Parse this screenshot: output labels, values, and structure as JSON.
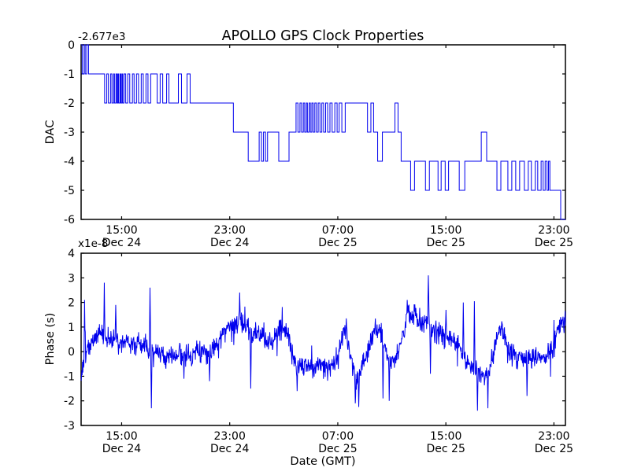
{
  "figure": {
    "title": "APOLLO GPS Clock Properties",
    "xlabel": "Date (GMT)",
    "background": "#ffffff",
    "line_color": "#0000ee",
    "axis_color": "#000000"
  },
  "x_axis": {
    "range_hours": [
      12.0,
      47.85
    ],
    "unit": "hours since Dec 24 00:00 GMT",
    "ticks": [
      {
        "hour": 15,
        "time": "15:00",
        "date": "Dec 24"
      },
      {
        "hour": 23,
        "time": "23:00",
        "date": "Dec 24"
      },
      {
        "hour": 31,
        "time": "07:00",
        "date": "Dec 25"
      },
      {
        "hour": 39,
        "time": "15:00",
        "date": "Dec 25"
      },
      {
        "hour": 47,
        "time": "23:00",
        "date": "Dec 25"
      }
    ]
  },
  "chart_data": [
    {
      "type": "line",
      "subplot": "top",
      "ylabel": "DAC",
      "offset_text": "-2.677e3",
      "ylim": [
        -6,
        0
      ],
      "yticks": [
        0,
        -1,
        -2,
        -3,
        -4,
        -5,
        -6
      ],
      "step_mode": "post",
      "points": [
        [
          12.0,
          0
        ],
        [
          12.08,
          -1
        ],
        [
          12.22,
          0
        ],
        [
          12.3,
          -1
        ],
        [
          12.42,
          0
        ],
        [
          12.55,
          -1
        ],
        [
          13.74,
          -2
        ],
        [
          13.9,
          -1
        ],
        [
          14.02,
          -2
        ],
        [
          14.18,
          -1
        ],
        [
          14.28,
          -2
        ],
        [
          14.4,
          -1
        ],
        [
          14.47,
          -2
        ],
        [
          14.58,
          -1
        ],
        [
          14.65,
          -2
        ],
        [
          14.72,
          -1
        ],
        [
          14.78,
          -2
        ],
        [
          14.88,
          -1
        ],
        [
          14.94,
          -2
        ],
        [
          15.02,
          -1
        ],
        [
          15.08,
          -2
        ],
        [
          15.18,
          -1
        ],
        [
          15.3,
          -2
        ],
        [
          15.45,
          -1
        ],
        [
          15.6,
          -2
        ],
        [
          15.8,
          -1
        ],
        [
          15.92,
          -2
        ],
        [
          16.1,
          -1
        ],
        [
          16.25,
          -2
        ],
        [
          16.45,
          -1
        ],
        [
          16.6,
          -2
        ],
        [
          16.8,
          -1
        ],
        [
          16.95,
          -2
        ],
        [
          17.15,
          -1
        ],
        [
          17.63,
          -2
        ],
        [
          17.85,
          -1
        ],
        [
          18.04,
          -2
        ],
        [
          18.33,
          -1
        ],
        [
          18.5,
          -2
        ],
        [
          19.2,
          -1
        ],
        [
          19.43,
          -2
        ],
        [
          19.84,
          -1
        ],
        [
          20.07,
          -2
        ],
        [
          23.27,
          -3
        ],
        [
          24.37,
          -4
        ],
        [
          25.18,
          -3
        ],
        [
          25.35,
          -4
        ],
        [
          25.5,
          -3
        ],
        [
          25.65,
          -4
        ],
        [
          25.8,
          -3
        ],
        [
          26.63,
          -4
        ],
        [
          27.39,
          -3
        ],
        [
          27.91,
          -2
        ],
        [
          28.05,
          -3
        ],
        [
          28.2,
          -2
        ],
        [
          28.32,
          -3
        ],
        [
          28.45,
          -2
        ],
        [
          28.55,
          -3
        ],
        [
          28.67,
          -2
        ],
        [
          28.75,
          -3
        ],
        [
          28.88,
          -2
        ],
        [
          28.97,
          -3
        ],
        [
          29.08,
          -2
        ],
        [
          29.18,
          -3
        ],
        [
          29.3,
          -2
        ],
        [
          29.42,
          -3
        ],
        [
          29.55,
          -2
        ],
        [
          29.68,
          -3
        ],
        [
          29.82,
          -2
        ],
        [
          29.95,
          -3
        ],
        [
          30.1,
          -2
        ],
        [
          30.25,
          -3
        ],
        [
          30.42,
          -2
        ],
        [
          30.58,
          -3
        ],
        [
          30.78,
          -2
        ],
        [
          30.95,
          -3
        ],
        [
          31.1,
          -2
        ],
        [
          31.3,
          -3
        ],
        [
          31.55,
          -2
        ],
        [
          33.2,
          -3
        ],
        [
          33.45,
          -2
        ],
        [
          33.65,
          -3
        ],
        [
          33.95,
          -4
        ],
        [
          34.3,
          -3
        ],
        [
          35.23,
          -2
        ],
        [
          35.46,
          -3
        ],
        [
          35.69,
          -4
        ],
        [
          36.39,
          -5
        ],
        [
          36.68,
          -4
        ],
        [
          37.49,
          -5
        ],
        [
          37.78,
          -4
        ],
        [
          38.42,
          -5
        ],
        [
          38.65,
          -4
        ],
        [
          38.95,
          -5
        ],
        [
          39.2,
          -4
        ],
        [
          39.99,
          -5
        ],
        [
          40.4,
          -4
        ],
        [
          41.62,
          -3
        ],
        [
          42.02,
          -4
        ],
        [
          42.78,
          -5
        ],
        [
          43.07,
          -4
        ],
        [
          43.59,
          -5
        ],
        [
          43.88,
          -4
        ],
        [
          44.17,
          -5
        ],
        [
          44.46,
          -4
        ],
        [
          44.81,
          -5
        ],
        [
          45.1,
          -4
        ],
        [
          45.33,
          -5
        ],
        [
          45.62,
          -4
        ],
        [
          45.8,
          -5
        ],
        [
          46.05,
          -4
        ],
        [
          46.2,
          -5
        ],
        [
          46.35,
          -4
        ],
        [
          46.49,
          -5
        ],
        [
          46.6,
          -4
        ],
        [
          46.7,
          -5
        ],
        [
          47.5,
          -6
        ],
        [
          47.85,
          -6
        ]
      ]
    },
    {
      "type": "line",
      "subplot": "bottom",
      "ylabel": "Phase (s)",
      "offset_text": "x1e-8",
      "ylim": [
        -3,
        4
      ],
      "yticks": [
        4,
        3,
        2,
        1,
        0,
        -1,
        -2,
        -3
      ],
      "noise": {
        "seed": 1337,
        "amplitude": 0.42,
        "heavy_prob": 0.05,
        "heavy_mult": 2.2,
        "samples": 1400
      },
      "mean_anchors": [
        [
          12.0,
          -1.05
        ],
        [
          12.15,
          -0.5
        ],
        [
          12.4,
          0.1
        ],
        [
          12.7,
          0.3
        ],
        [
          13.0,
          0.55
        ],
        [
          13.4,
          0.75
        ],
        [
          13.8,
          0.55
        ],
        [
          14.2,
          0.6
        ],
        [
          14.6,
          0.45
        ],
        [
          15.0,
          0.3
        ],
        [
          15.4,
          0.45
        ],
        [
          15.8,
          0.35
        ],
        [
          16.2,
          0.3
        ],
        [
          16.6,
          0.25
        ],
        [
          17.0,
          0.15
        ],
        [
          17.4,
          -0.1
        ],
        [
          17.8,
          -0.05
        ],
        [
          18.2,
          -0.1
        ],
        [
          18.6,
          -0.15
        ],
        [
          19.0,
          -0.1
        ],
        [
          19.4,
          -0.05
        ],
        [
          19.8,
          -0.2
        ],
        [
          20.2,
          -0.1
        ],
        [
          20.6,
          0.1
        ],
        [
          21.0,
          0.15
        ],
        [
          21.4,
          0.05
        ],
        [
          21.8,
          0.2
        ],
        [
          22.2,
          0.4
        ],
        [
          22.6,
          0.8
        ],
        [
          23.0,
          1.0
        ],
        [
          23.4,
          1.2
        ],
        [
          23.8,
          1.25
        ],
        [
          24.2,
          1.0
        ],
        [
          24.6,
          0.7
        ],
        [
          25.0,
          0.85
        ],
        [
          25.4,
          0.6
        ],
        [
          25.8,
          0.3
        ],
        [
          26.2,
          0.4
        ],
        [
          26.6,
          0.9
        ],
        [
          27.0,
          1.0
        ],
        [
          27.4,
          0.6
        ],
        [
          27.8,
          -0.3
        ],
        [
          28.2,
          -0.6
        ],
        [
          28.6,
          -0.5
        ],
        [
          29.0,
          -0.55
        ],
        [
          29.4,
          -0.6
        ],
        [
          29.8,
          -0.5
        ],
        [
          30.2,
          -0.65
        ],
        [
          30.6,
          -0.5
        ],
        [
          31.0,
          -0.3
        ],
        [
          31.4,
          0.9
        ],
        [
          31.7,
          0.4
        ],
        [
          32.0,
          -0.3
        ],
        [
          32.4,
          -1.2
        ],
        [
          32.7,
          -0.7
        ],
        [
          33.0,
          -0.2
        ],
        [
          33.4,
          0.3
        ],
        [
          33.8,
          1.0
        ],
        [
          34.2,
          0.8
        ],
        [
          34.6,
          -0.1
        ],
        [
          35.0,
          -0.4
        ],
        [
          35.4,
          -0.2
        ],
        [
          35.8,
          0.6
        ],
        [
          36.2,
          1.5
        ],
        [
          36.6,
          1.6
        ],
        [
          37.0,
          1.2
        ],
        [
          37.4,
          1.1
        ],
        [
          37.7,
          1.5
        ],
        [
          38.0,
          0.9
        ],
        [
          38.4,
          0.8
        ],
        [
          38.8,
          0.7
        ],
        [
          39.2,
          0.6
        ],
        [
          39.6,
          0.4
        ],
        [
          40.0,
          0.3
        ],
        [
          40.4,
          -0.2
        ],
        [
          40.8,
          -0.6
        ],
        [
          41.2,
          -0.7
        ],
        [
          41.6,
          -1.0
        ],
        [
          42.0,
          -0.9
        ],
        [
          42.4,
          -0.4
        ],
        [
          42.8,
          0.6
        ],
        [
          43.1,
          1.0
        ],
        [
          43.4,
          0.4
        ],
        [
          43.7,
          0.0
        ],
        [
          44.0,
          -0.1
        ],
        [
          44.4,
          -0.3
        ],
        [
          44.8,
          -0.2
        ],
        [
          45.2,
          -0.3
        ],
        [
          45.6,
          -0.15
        ],
        [
          46.0,
          -0.35
        ],
        [
          46.4,
          -0.2
        ],
        [
          46.8,
          0.0
        ],
        [
          47.1,
          0.5
        ],
        [
          47.4,
          1.0
        ],
        [
          47.85,
          1.3
        ]
      ],
      "spikes": [
        [
          12.25,
          2.1
        ],
        [
          13.72,
          2.8
        ],
        [
          14.55,
          1.9
        ],
        [
          17.1,
          2.6
        ],
        [
          17.2,
          -2.3
        ],
        [
          19.6,
          -1.1
        ],
        [
          21.5,
          -1.2
        ],
        [
          23.73,
          2.4
        ],
        [
          24.55,
          -1.5
        ],
        [
          28.0,
          -1.6
        ],
        [
          31.62,
          1.35
        ],
        [
          32.3,
          -2.1
        ],
        [
          32.55,
          -2.25
        ],
        [
          34.35,
          -1.9
        ],
        [
          34.8,
          -2.0
        ],
        [
          36.15,
          2.1
        ],
        [
          37.7,
          3.1
        ],
        [
          37.85,
          -0.9
        ],
        [
          39.0,
          1.7
        ],
        [
          40.3,
          2.0
        ],
        [
          41.1,
          2.05
        ],
        [
          41.35,
          -2.4
        ],
        [
          42.1,
          -2.3
        ],
        [
          43.15,
          1.15
        ],
        [
          45.0,
          -1.8
        ]
      ]
    }
  ]
}
